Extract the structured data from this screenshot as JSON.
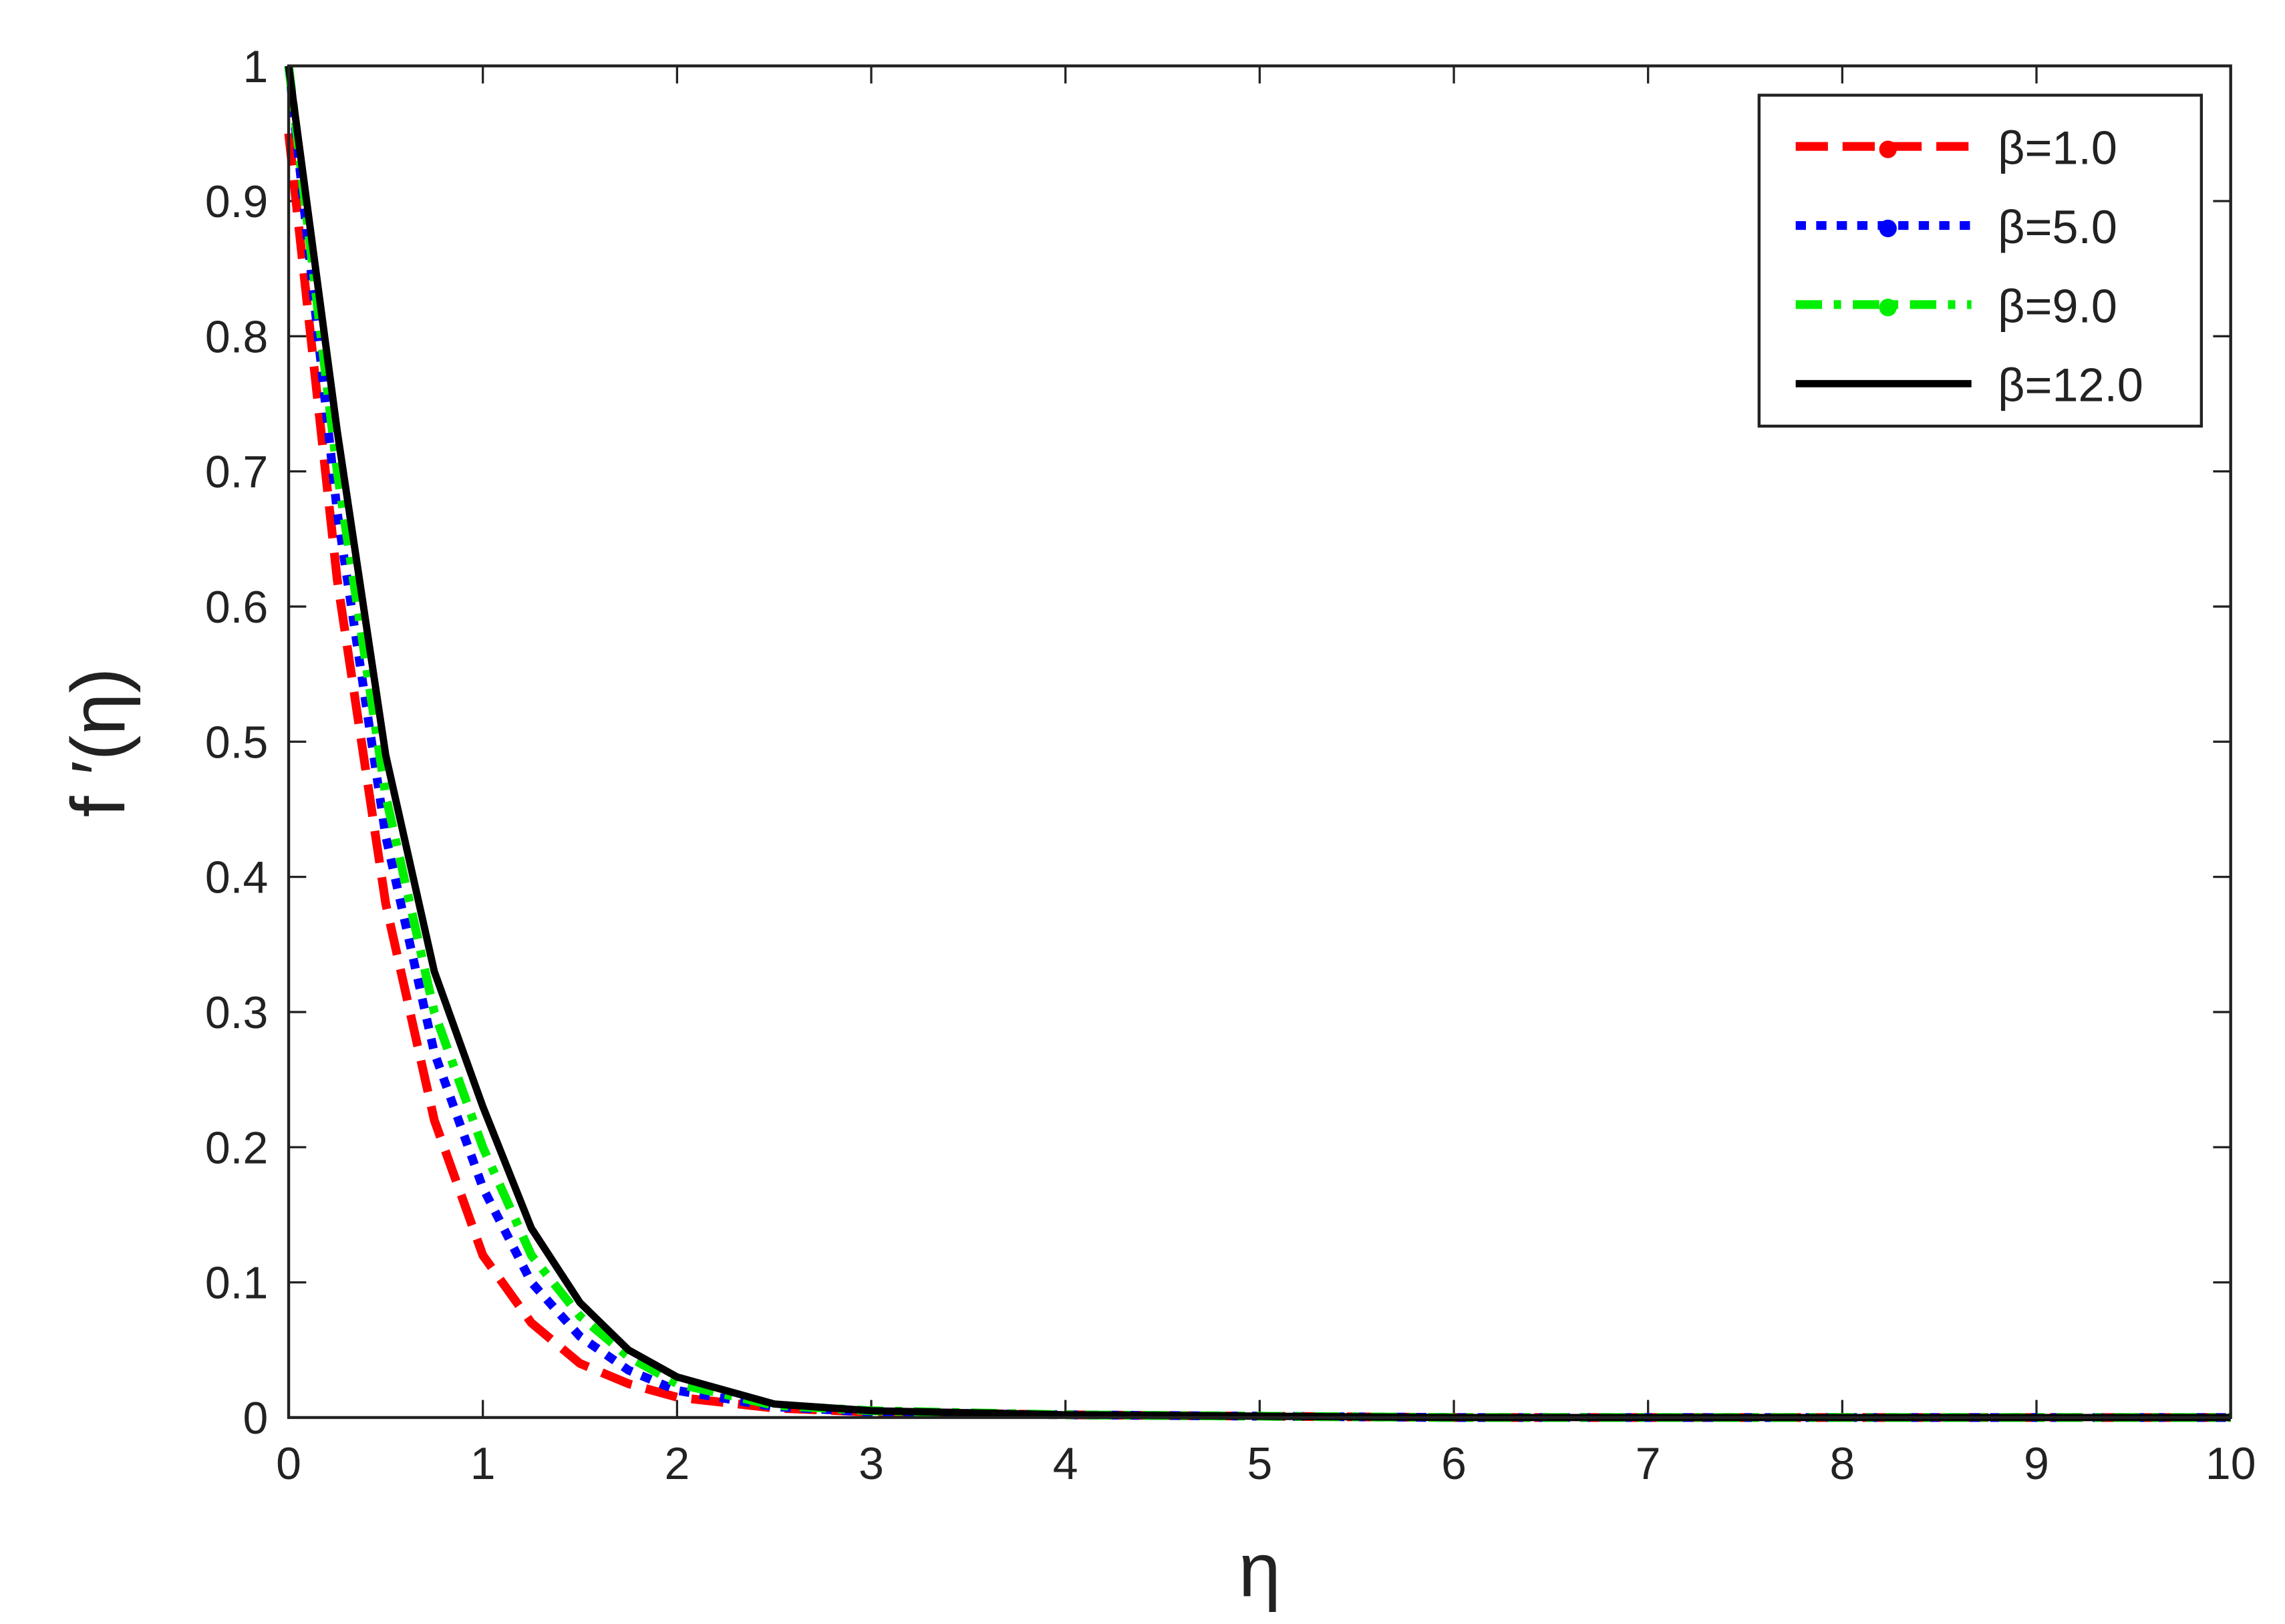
{
  "chart_data": {
    "type": "line",
    "x_label": "η",
    "y_label": "f ′(η)",
    "x": [
      0,
      0.25,
      0.5,
      0.75,
      1,
      1.25,
      1.5,
      1.75,
      2,
      2.5,
      3,
      4,
      5,
      6,
      7,
      8,
      9,
      10
    ],
    "series": [
      {
        "name": "β=1.0",
        "color": "#ff0000",
        "dash": "22 10",
        "values": [
          0.95,
          0.62,
          0.38,
          0.22,
          0.12,
          0.07,
          0.04,
          0.025,
          0.015,
          0.007,
          0.004,
          0.002,
          0.001,
          0,
          0,
          0,
          0,
          0
        ]
      },
      {
        "name": "β=5.0",
        "color": "#0000ff",
        "dash": "7 7",
        "values": [
          1,
          0.67,
          0.43,
          0.27,
          0.17,
          0.1,
          0.06,
          0.035,
          0.02,
          0.008,
          0.004,
          0.002,
          0.001,
          0,
          0,
          0,
          0,
          0
        ]
      },
      {
        "name": "β=9.0",
        "color": "#00ee00",
        "dash": "18 8 5 8",
        "values": [
          1,
          0.7,
          0.46,
          0.3,
          0.2,
          0.12,
          0.075,
          0.045,
          0.025,
          0.009,
          0.005,
          0.002,
          0.001,
          0,
          0,
          0,
          0,
          0
        ]
      },
      {
        "name": "β=12.0",
        "color": "#000000",
        "dash": "none",
        "values": [
          1,
          0.73,
          0.49,
          0.33,
          0.23,
          0.14,
          0.085,
          0.05,
          0.03,
          0.01,
          0.005,
          0.002,
          0.001,
          0,
          0,
          0,
          0,
          0
        ]
      }
    ],
    "xlim": [
      0,
      10
    ],
    "xticks": [
      0,
      1,
      2,
      3,
      4,
      5,
      6,
      7,
      8,
      9,
      10
    ],
    "ylim": [
      0,
      1
    ],
    "yticks": [
      0,
      0.1,
      0.2,
      0.3,
      0.4,
      0.5,
      0.6,
      0.7,
      0.8,
      0.9,
      1
    ],
    "legend": "upper right",
    "grid": false
  }
}
